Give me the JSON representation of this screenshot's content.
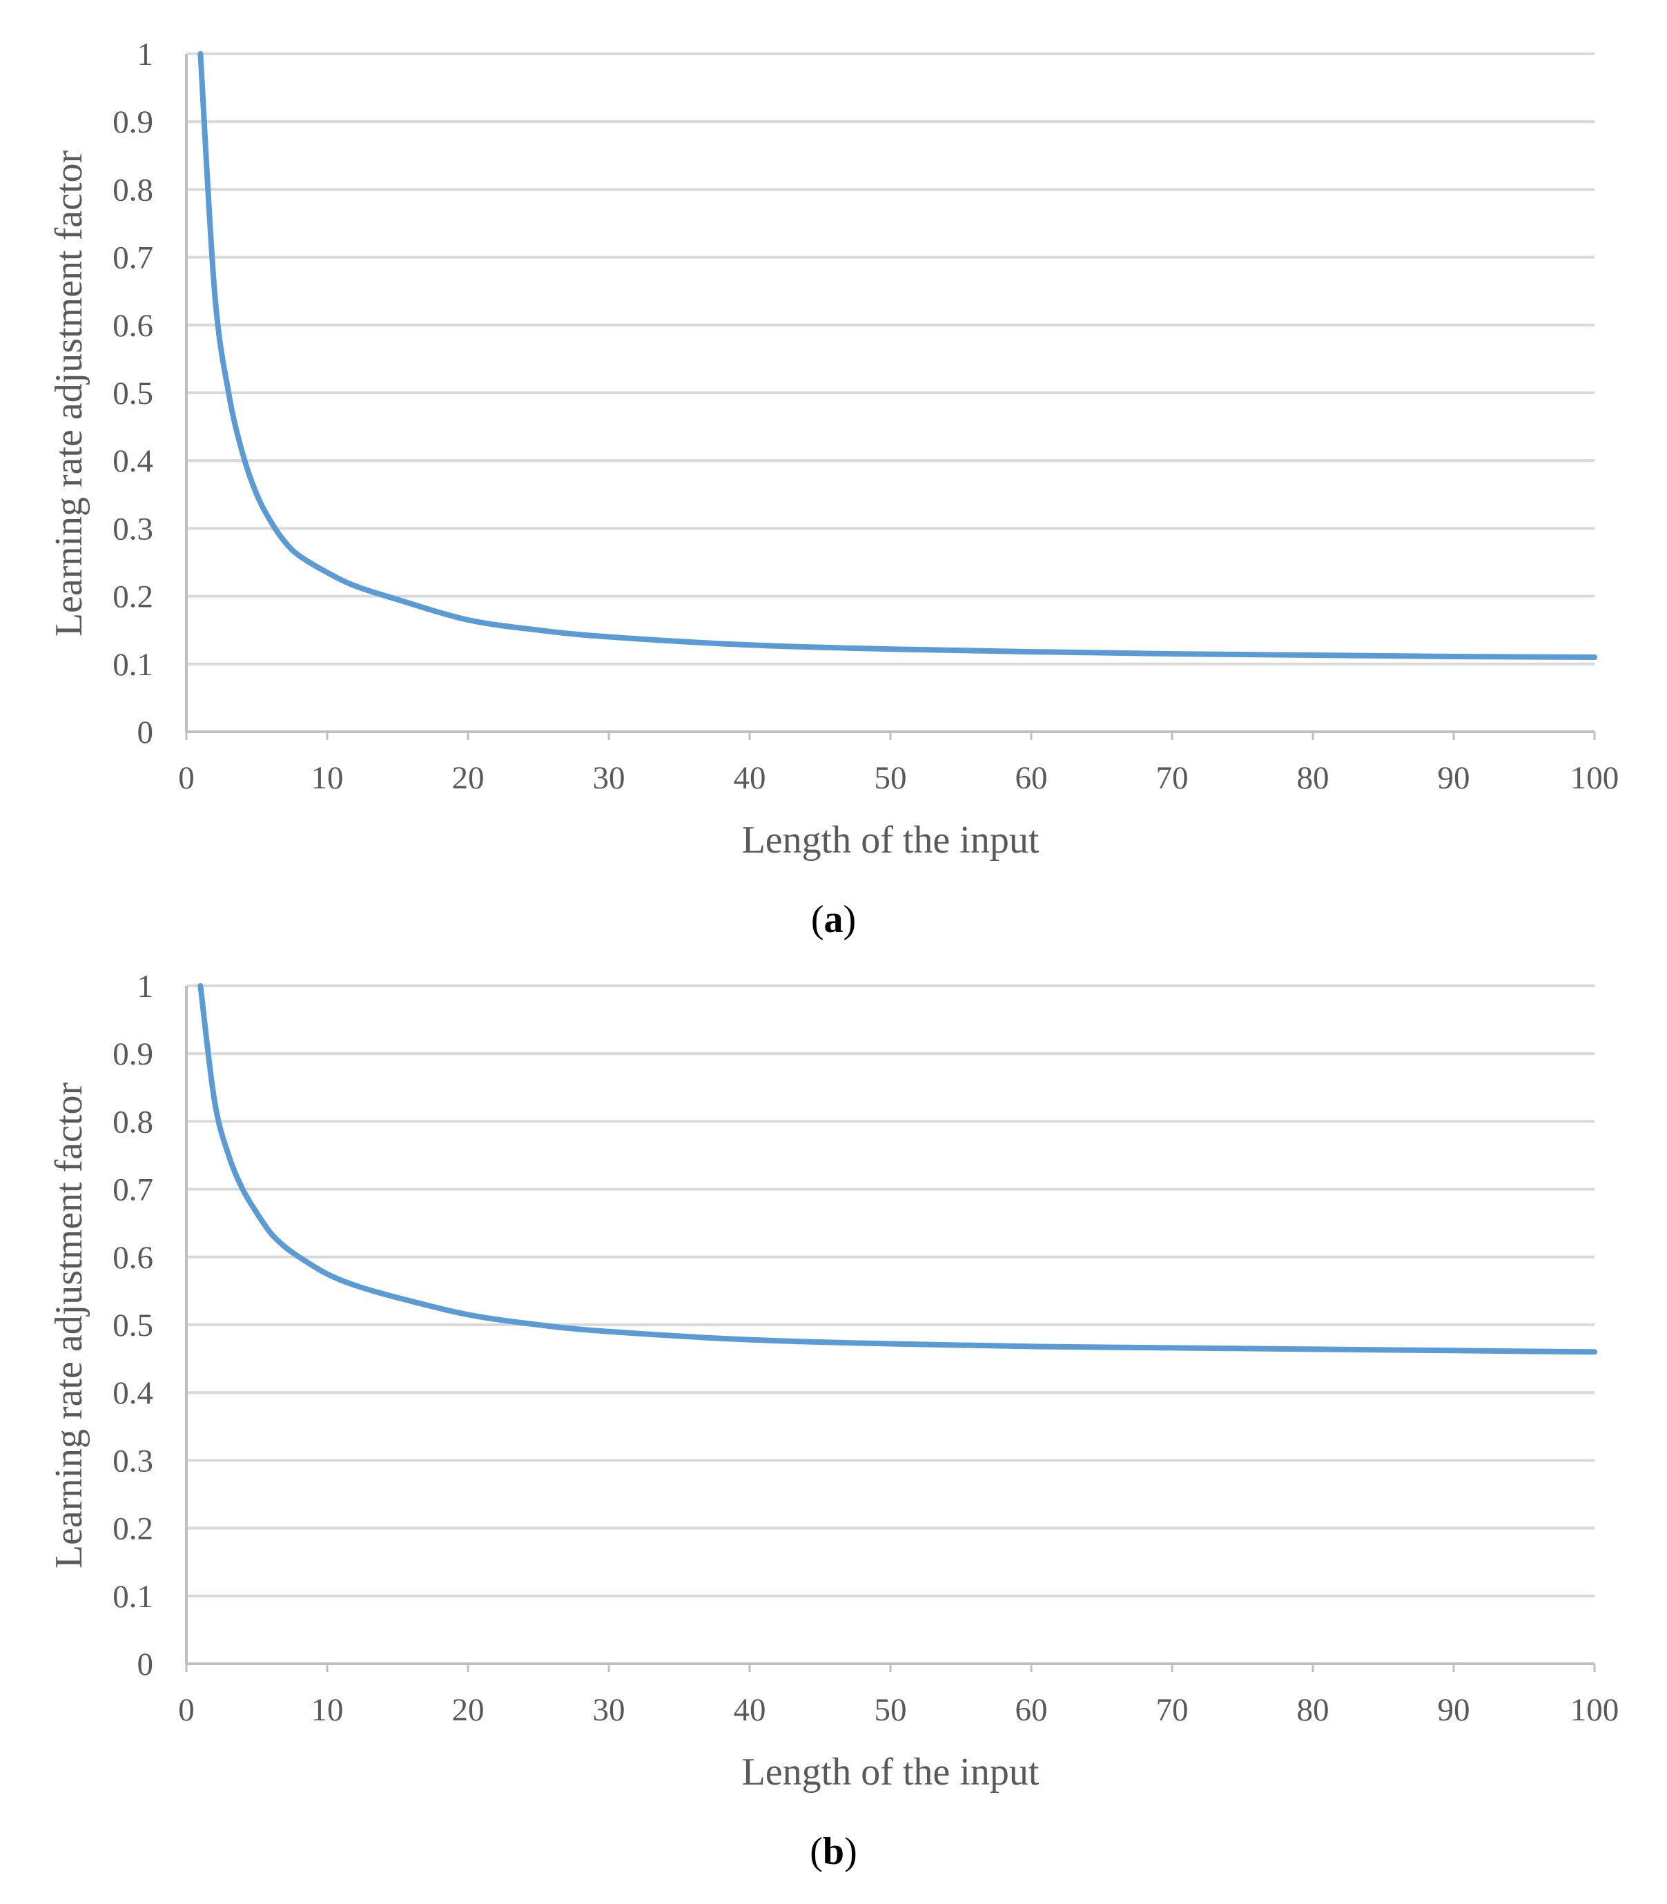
{
  "chart_data": [
    {
      "type": "line",
      "xlabel": "Length of the input",
      "ylabel": "Learning rate adjustment factor",
      "xlim": [
        0,
        100
      ],
      "ylim": [
        0,
        1
      ],
      "x_ticks": [
        "0",
        "10",
        "20",
        "30",
        "40",
        "50",
        "60",
        "70",
        "80",
        "90",
        "100"
      ],
      "y_ticks": [
        "0",
        "0.1",
        "0.2",
        "0.3",
        "0.4",
        "0.5",
        "0.6",
        "0.7",
        "0.8",
        "0.9",
        "1"
      ],
      "grid": "horizontal",
      "legend": "none",
      "line_color": "#5b9bd5",
      "series": [
        {
          "x": [
            1,
            2,
            3,
            4,
            5,
            6,
            7,
            8,
            10,
            12,
            15,
            20,
            25,
            30,
            40,
            50,
            60,
            70,
            80,
            90,
            100
          ],
          "values": [
            1.0,
            0.65,
            0.5,
            0.41,
            0.35,
            0.31,
            0.28,
            0.26,
            0.235,
            0.215,
            0.195,
            0.165,
            0.15,
            0.14,
            0.128,
            0.122,
            0.118,
            0.115,
            0.113,
            0.111,
            0.11
          ]
        }
      ],
      "caption": "a"
    },
    {
      "type": "line",
      "xlabel": "Length of the input",
      "ylabel": "Learning rate adjustment factor",
      "xlim": [
        0,
        100
      ],
      "ylim": [
        0,
        1
      ],
      "x_ticks": [
        "0",
        "10",
        "20",
        "30",
        "40",
        "50",
        "60",
        "70",
        "80",
        "90",
        "100"
      ],
      "y_ticks": [
        "0",
        "0.1",
        "0.2",
        "0.3",
        "0.4",
        "0.5",
        "0.6",
        "0.7",
        "0.8",
        "0.9",
        "1"
      ],
      "grid": "horizontal",
      "legend": "none",
      "line_color": "#5b9bd5",
      "series": [
        {
          "x": [
            1,
            2,
            3,
            4,
            5,
            6,
            7,
            8,
            10,
            12,
            15,
            20,
            25,
            30,
            40,
            50,
            60,
            70,
            80,
            90,
            100
          ],
          "values": [
            1.0,
            0.83,
            0.75,
            0.7,
            0.665,
            0.635,
            0.615,
            0.6,
            0.575,
            0.558,
            0.54,
            0.515,
            0.5,
            0.49,
            0.478,
            0.472,
            0.468,
            0.466,
            0.464,
            0.462,
            0.46
          ]
        }
      ],
      "caption": "b"
    }
  ]
}
